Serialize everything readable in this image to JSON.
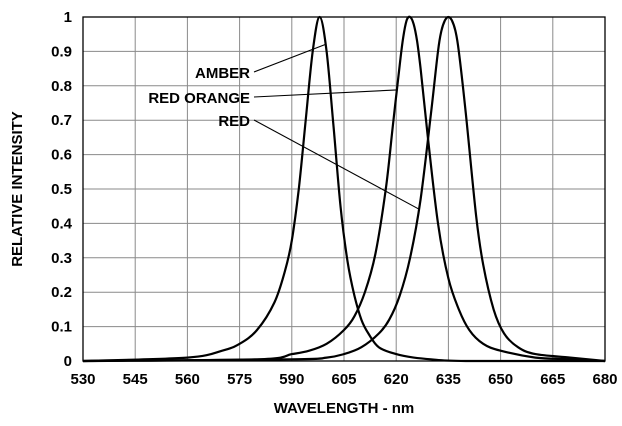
{
  "chart_data": {
    "type": "line",
    "title": "",
    "xlabel": "WAVELENGTH - nm",
    "ylabel": "RELATIVE INTENSITY",
    "xlim": [
      530,
      680
    ],
    "ylim": [
      0,
      1
    ],
    "x_ticks": [
      "530",
      "545",
      "560",
      "575",
      "590",
      "605",
      "620",
      "635",
      "650",
      "665",
      "680"
    ],
    "y_ticks": [
      "0",
      "0.1",
      "0.2",
      "0.3",
      "0.4",
      "0.5",
      "0.6",
      "0.7",
      "0.8",
      "0.9",
      "1"
    ],
    "grid": true,
    "series": [
      {
        "name": "AMBER",
        "peak_nm": 598,
        "x": [
          530,
          560,
          570,
          575,
          580,
          585,
          588,
          590,
          592,
          594,
          596,
          598,
          600,
          602,
          604,
          606,
          608,
          610,
          612,
          615,
          620,
          625,
          630,
          640,
          680
        ],
        "y": [
          0,
          0.01,
          0.03,
          0.05,
          0.09,
          0.17,
          0.26,
          0.35,
          0.5,
          0.7,
          0.9,
          1.0,
          0.9,
          0.68,
          0.45,
          0.29,
          0.19,
          0.12,
          0.08,
          0.04,
          0.02,
          0.01,
          0.005,
          0,
          0
        ]
      },
      {
        "name": "RED ORANGE",
        "peak_nm": 624,
        "x": [
          530,
          580,
          590,
          595,
          600,
          605,
          608,
          611,
          614,
          617,
          619,
          621,
          622,
          623,
          624,
          625,
          626,
          627,
          629,
          632,
          635,
          638,
          641,
          645,
          650,
          660,
          670,
          680
        ],
        "y": [
          0,
          0.005,
          0.02,
          0.03,
          0.05,
          0.09,
          0.13,
          0.2,
          0.31,
          0.5,
          0.68,
          0.86,
          0.94,
          0.99,
          1.0,
          0.98,
          0.93,
          0.85,
          0.66,
          0.4,
          0.24,
          0.15,
          0.09,
          0.05,
          0.03,
          0.01,
          0.005,
          0
        ]
      },
      {
        "name": "RED",
        "peak_nm": 635,
        "x": [
          530,
          590,
          600,
          605,
          610,
          615,
          618,
          621,
          624,
          627,
          630,
          632,
          633,
          634,
          635,
          636,
          637,
          638,
          640,
          643,
          645,
          648,
          651,
          655,
          660,
          670,
          680
        ],
        "y": [
          0,
          0.005,
          0.01,
          0.02,
          0.04,
          0.08,
          0.12,
          0.19,
          0.3,
          0.47,
          0.72,
          0.9,
          0.96,
          0.99,
          1.0,
          0.99,
          0.96,
          0.9,
          0.72,
          0.42,
          0.28,
          0.15,
          0.08,
          0.04,
          0.02,
          0.01,
          0
        ]
      }
    ],
    "annotations": [
      "AMBER",
      "RED ORANGE",
      "RED"
    ]
  }
}
